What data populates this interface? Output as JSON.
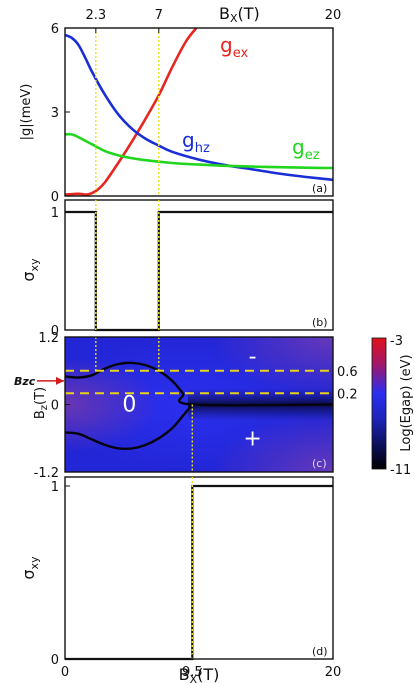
{
  "chart_data": [
    {
      "id": "a",
      "type": "line",
      "panel_label": "(a)",
      "top_axis_label": "B",
      "top_axis_label_sub": "X",
      "top_axis_label_unit": "(T)",
      "top_ticks": [
        2.3,
        7,
        20
      ],
      "top_tick_labels": [
        "2.3",
        "7",
        "20"
      ],
      "xlim": [
        0,
        20
      ],
      "ylim": [
        0,
        6
      ],
      "ylabel": "|g|(meV)",
      "yticks": [
        0,
        3,
        6
      ],
      "ytick_labels": [
        "0",
        "3",
        "6"
      ],
      "vertical_markers": [
        2.3,
        7
      ],
      "series": [
        {
          "name": "g",
          "subscript": "ex",
          "color": "#e8261f",
          "x": [
            0,
            1,
            1.6,
            2.0,
            2.5,
            3,
            4,
            5,
            6,
            7,
            8,
            9,
            9.8
          ],
          "y": [
            0.05,
            0.08,
            0.05,
            0.1,
            0.25,
            0.5,
            1.2,
            1.95,
            2.75,
            3.6,
            4.6,
            5.5,
            6.0
          ]
        },
        {
          "name": "g",
          "subscript": "hz",
          "color": "#1a2ed6",
          "x": [
            0,
            0.5,
            1,
            1.5,
            2,
            3,
            4,
            5,
            6,
            7,
            8,
            10,
            12,
            14,
            16,
            18,
            20
          ],
          "y": [
            5.75,
            5.65,
            5.4,
            4.95,
            4.45,
            3.6,
            2.9,
            2.4,
            2.05,
            1.8,
            1.58,
            1.3,
            1.1,
            0.95,
            0.8,
            0.68,
            0.58
          ]
        },
        {
          "name": "g",
          "subscript": "ez",
          "color": "#22d61f",
          "x": [
            0,
            0.5,
            1,
            2,
            3,
            4,
            5,
            6,
            8,
            10,
            12,
            14,
            16,
            18,
            20
          ],
          "y": [
            2.2,
            2.2,
            2.1,
            1.85,
            1.6,
            1.45,
            1.35,
            1.28,
            1.18,
            1.12,
            1.08,
            1.05,
            1.03,
            1.01,
            1.0
          ]
        }
      ]
    },
    {
      "id": "b",
      "type": "line",
      "panel_label": "(b)",
      "xlim": [
        0,
        20
      ],
      "ylim": [
        0,
        1
      ],
      "ylabel": "σ",
      "ylabel_sub": "xy",
      "yticks": [
        0,
        1
      ],
      "ytick_labels": [
        "0",
        "1"
      ],
      "series": [
        {
          "x": [
            0,
            2.3,
            2.3,
            7,
            7,
            20
          ],
          "y": [
            1,
            1,
            0,
            0,
            1,
            1
          ]
        }
      ]
    },
    {
      "id": "c",
      "type": "heatmap",
      "panel_label": "(c)",
      "xlim": [
        0,
        20
      ],
      "ylim": [
        -1.2,
        1.2
      ],
      "ylabel": "B",
      "ylabel_sub": "z",
      "ylabel_unit": "(T)",
      "yticks": [
        -1.2,
        0,
        1.2
      ],
      "ytick_labels": [
        "-1.2",
        "0",
        "1.2"
      ],
      "colorbar": {
        "label": "Log(Egap) (eV)",
        "min": -11,
        "max": -3,
        "tick_labels": [
          "-3",
          "-11"
        ]
      },
      "horizontal_markers": [
        0.6,
        0.2
      ],
      "horizontal_marker_labels": [
        "0.6",
        "0.2"
      ],
      "arrow_label": "Bzc",
      "arrow_at_bz": 0.42,
      "region_labels": [
        {
          "text": "0",
          "x": 4.8,
          "y": 0.0
        },
        {
          "text": "-",
          "x": 14.0,
          "y": 0.85
        },
        {
          "text": "+",
          "x": 14.0,
          "y": -0.6
        }
      ],
      "gap_closing_curves": [
        {
          "x": [
            0,
            1,
            2,
            3,
            4,
            5,
            6,
            7,
            8,
            8.8,
            9.5,
            20
          ],
          "y": [
            0.5,
            0.48,
            0.52,
            0.64,
            0.72,
            0.74,
            0.7,
            0.6,
            0.42,
            0.2,
            0.0,
            0.0
          ]
        },
        {
          "x": [
            0,
            1,
            2,
            3,
            4,
            5,
            6,
            7,
            8,
            8.8,
            9.5
          ],
          "y": [
            -0.5,
            -0.52,
            -0.62,
            -0.72,
            -0.78,
            -0.78,
            -0.72,
            -0.6,
            -0.42,
            -0.2,
            0.0
          ]
        }
      ]
    },
    {
      "id": "d",
      "type": "line",
      "panel_label": "(d)",
      "xlim": [
        0,
        20
      ],
      "ylim": [
        0,
        1
      ],
      "xlabel": "B",
      "xlabel_sub": "X",
      "xlabel_unit": "(T)",
      "xticks": [
        0,
        9.5,
        20
      ],
      "xtick_labels": [
        "0",
        "9.5",
        "20"
      ],
      "ylabel": "σ",
      "ylabel_sub": "xy",
      "yticks": [
        0,
        1
      ],
      "ytick_labels": [
        "0",
        "1"
      ],
      "vertical_markers": [
        9.5
      ],
      "series": [
        {
          "x": [
            0,
            9.5,
            9.5,
            20
          ],
          "y": [
            0,
            0,
            1,
            1
          ]
        }
      ]
    }
  ]
}
